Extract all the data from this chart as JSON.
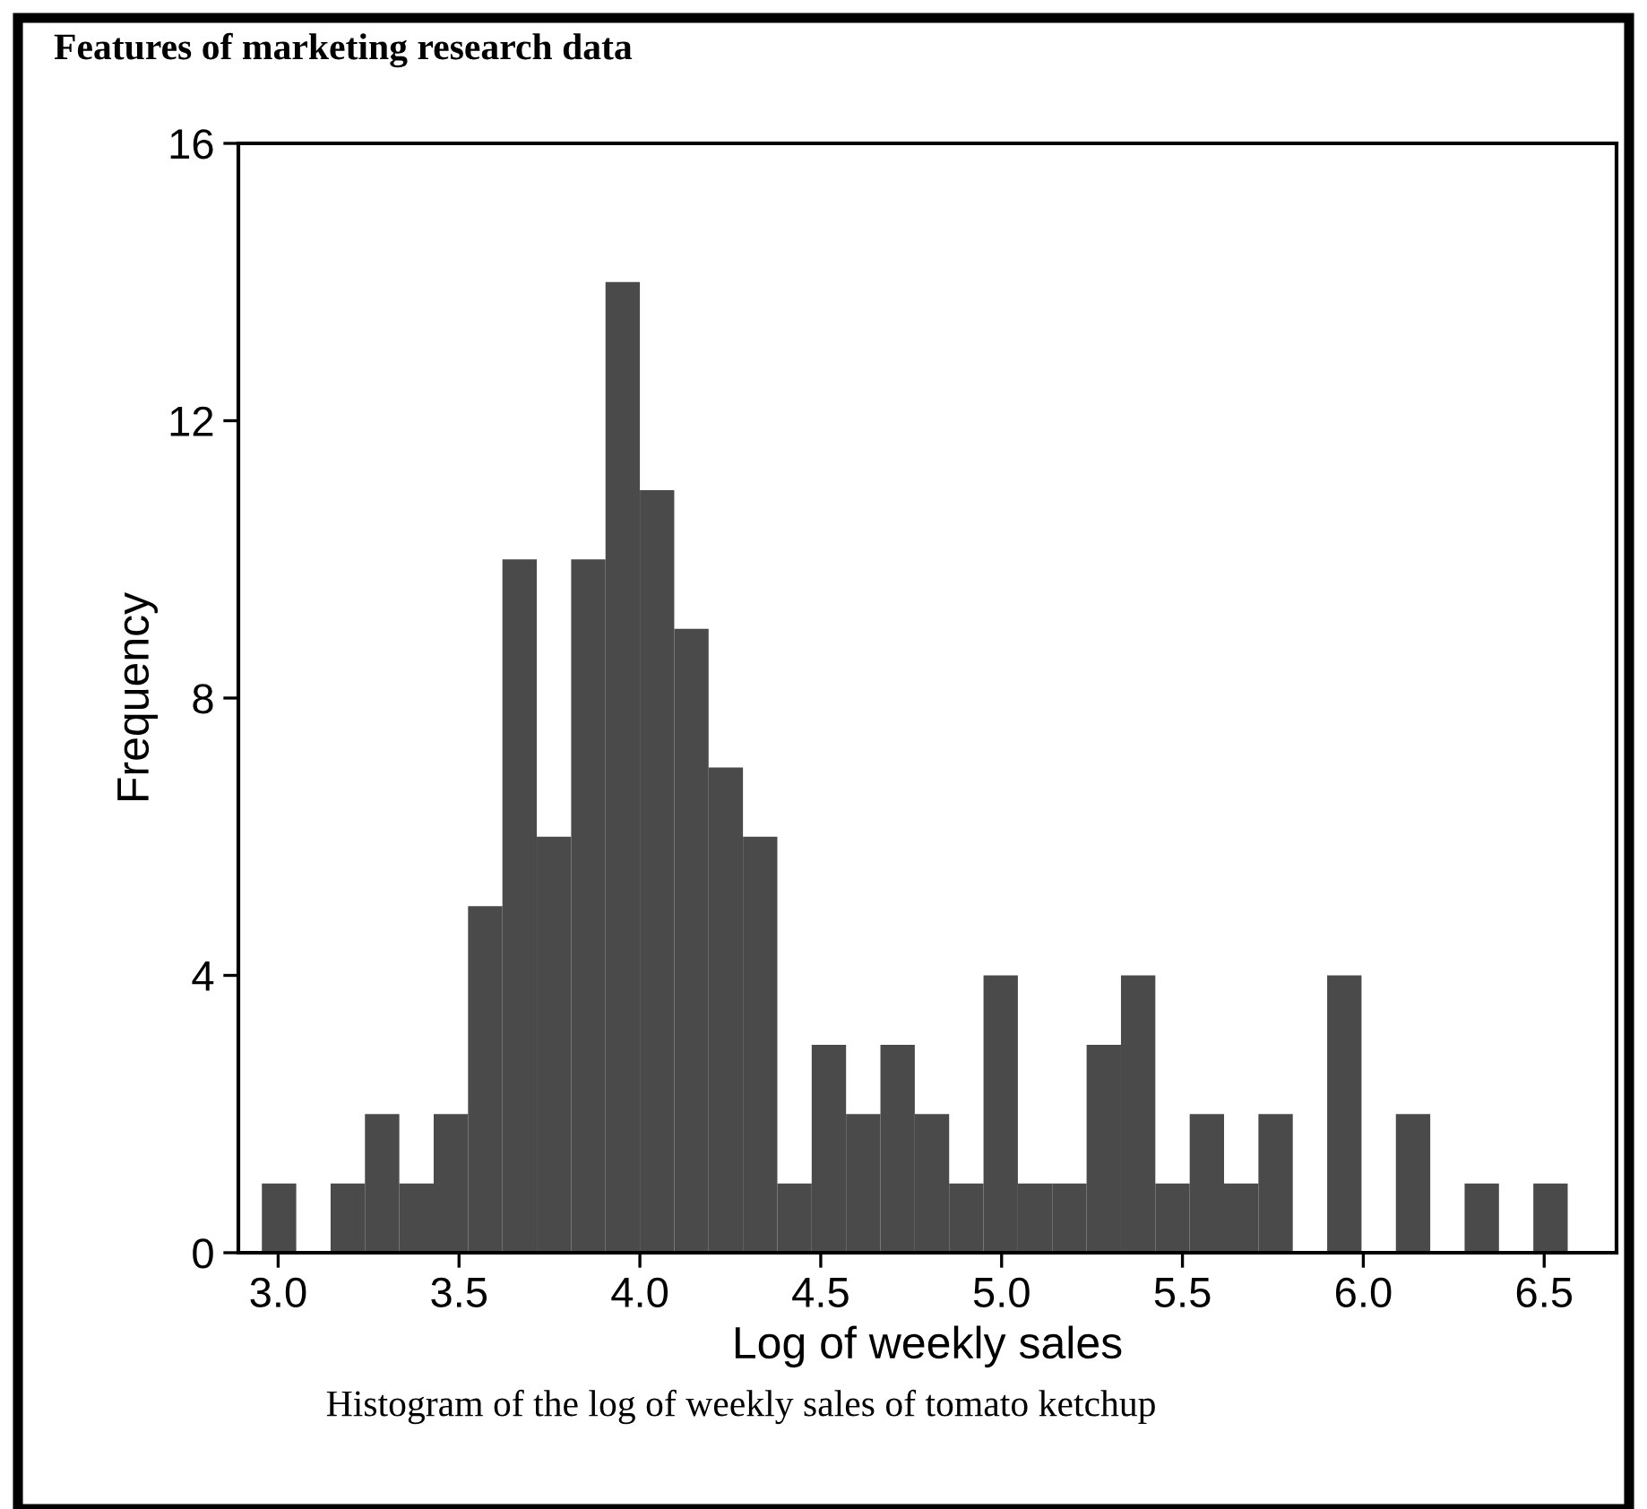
{
  "chart_data": {
    "type": "histogram",
    "title": "Features of marketing research data",
    "xlabel": "Log of weekly sales",
    "ylabel": "Frequency",
    "annotations": [
      "Histogram of the log of weekly sales of tomato ketchup"
    ],
    "bins": [
      2.955,
      3.05,
      3.145,
      3.24,
      3.335,
      3.43,
      3.525,
      3.62,
      3.715,
      3.81,
      3.905,
      4.0,
      4.095,
      4.19,
      4.285,
      4.38,
      4.475,
      4.57,
      4.665,
      4.76,
      4.855,
      4.95,
      5.045,
      5.14,
      5.235,
      5.33,
      5.425,
      5.52,
      5.615,
      5.71,
      5.805,
      5.9,
      5.995,
      6.09,
      6.185,
      6.28,
      6.375,
      6.47,
      6.565
    ],
    "values": [
      1,
      0,
      1,
      2,
      1,
      2,
      5,
      10,
      6,
      10,
      14,
      11,
      9,
      7,
      6,
      1,
      3,
      2,
      3,
      2,
      1,
      4,
      1,
      1,
      3,
      4,
      1,
      2,
      1,
      2,
      0,
      4,
      0,
      2,
      0,
      1,
      0,
      1
    ],
    "color": "#4a4a4a",
    "xlim": [
      2.89,
      6.7
    ],
    "ylim": [
      0,
      16
    ],
    "xticks": [
      {
        "value": 3.0,
        "label": "3.0"
      },
      3.5,
      {
        "value": 4.0,
        "label": "4.0"
      },
      4.5,
      {
        "value": 5.0,
        "label": "5.0"
      },
      5.5,
      {
        "value": 6.0,
        "label": "6.0"
      },
      6.5
    ],
    "yticks": [
      0,
      4,
      8,
      12,
      16
    ],
    "grid": false
  }
}
